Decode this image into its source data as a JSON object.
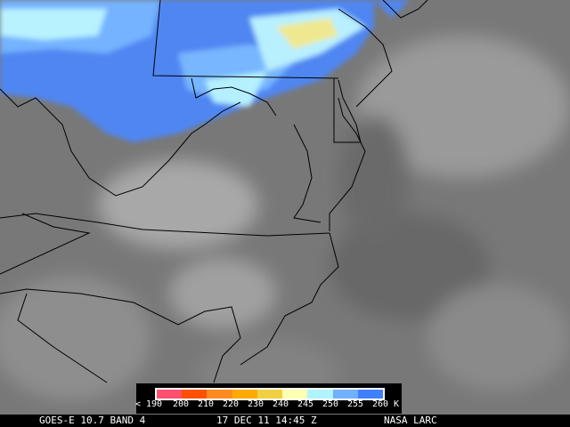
{
  "legend": {
    "colors": [
      "#ff5070",
      "#ff5000",
      "#ff8a20",
      "#ffaa00",
      "#f0d040",
      "#ffffb0",
      "#b0f4ff",
      "#70b0ff",
      "#4080ff"
    ],
    "ticks": [
      "< 190",
      "200",
      "210",
      "220",
      "230",
      "240",
      "245",
      "250",
      "255",
      "260",
      "K"
    ]
  },
  "footer": {
    "satellite": "GOES-E 10.7 BAND 4",
    "datetime": "17 DEC 11 14:45 Z",
    "source": "NASA LARC"
  }
}
